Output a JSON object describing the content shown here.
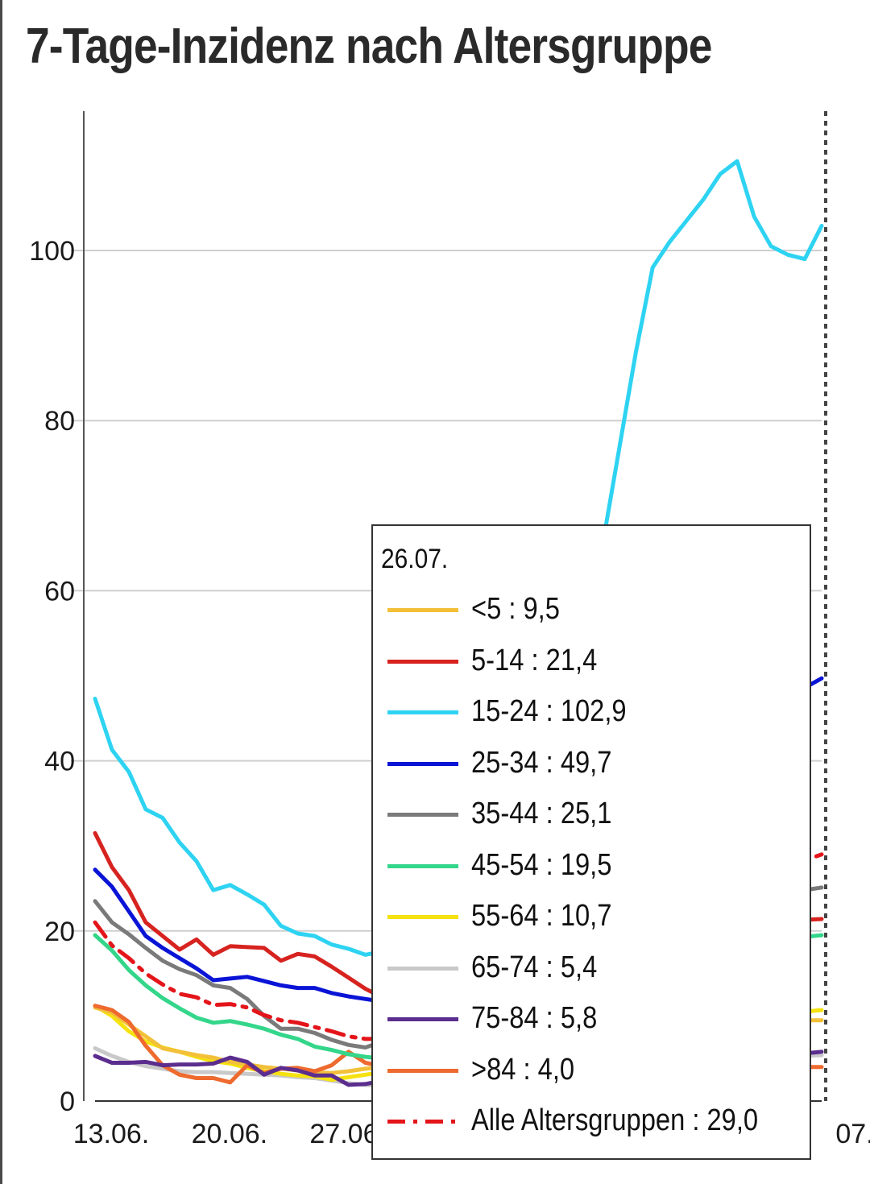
{
  "colors": {
    "u5": "#F2C039",
    "a5_14": "#D7231F",
    "a15_24": "#2ED3F2",
    "a25_34": "#0A14D6",
    "a35_44": "#7A7A7A",
    "a45_54": "#33D68A",
    "a55_64": "#F5E20F",
    "a65_74": "#C9C9C9",
    "a75_84": "#5B2D8E",
    "a84plus": "#EE6A2E",
    "all": "#E4151A"
  },
  "chart_data": {
    "type": "line",
    "title": "7-Tage-Inzidenz nach Altersgruppe",
    "xlabel": "",
    "ylabel": "",
    "ylim": [
      0,
      115
    ],
    "yticks": [
      0,
      20,
      40,
      60,
      80,
      100
    ],
    "xticks": [
      {
        "day": 0,
        "label": "13.06."
      },
      {
        "day": 7,
        "label": "20.06."
      },
      {
        "day": 14,
        "label": "27.06."
      },
      {
        "day": 44,
        "label": "07."
      }
    ],
    "x_range": [
      "13.06.",
      "26.07."
    ],
    "x_dates": [
      "13.06.",
      "14.06.",
      "15.06.",
      "16.06.",
      "17.06.",
      "18.06.",
      "19.06.",
      "20.06.",
      "21.06.",
      "22.06.",
      "23.06.",
      "24.06.",
      "25.06.",
      "26.06.",
      "27.06.",
      "28.06.",
      "29.06.",
      "30.06.",
      "01.07.",
      "02.07.",
      "03.07.",
      "04.07.",
      "05.07.",
      "06.07.",
      "07.07.",
      "08.07.",
      "09.07.",
      "10.07.",
      "11.07.",
      "12.07.",
      "13.07.",
      "14.07.",
      "15.07.",
      "16.07.",
      "17.07.",
      "18.07.",
      "19.07.",
      "20.07.",
      "21.07.",
      "22.07.",
      "23.07.",
      "24.07.",
      "25.07.",
      "26.07."
    ],
    "grid": true,
    "marker_date": "26.07.",
    "series": [
      {
        "key": "u5",
        "name": "<5",
        "color_key": "u5",
        "values": [
          11,
          10.4,
          9,
          7.6,
          6.2,
          5.8,
          5.4,
          5.1,
          4.6,
          4.3,
          4,
          3.8,
          3.6,
          3.4,
          3.3,
          3.5,
          3.8,
          4,
          4.3,
          4.6,
          4.9,
          5.1,
          5.4,
          5.6,
          5.9,
          6.1,
          6.4,
          6.7,
          7,
          7.3,
          7.6,
          7.9,
          8.2,
          8.5,
          8.7,
          8.9,
          9,
          9.1,
          9.2,
          9.3,
          9.4,
          9.4,
          9.5,
          9.5
        ]
      },
      {
        "key": "a5_14",
        "name": "5-14",
        "color_key": "a5_14",
        "values": [
          31.5,
          27.5,
          24.8,
          21,
          19.4,
          17.8,
          19,
          17.2,
          18.2,
          18.1,
          18,
          16.5,
          17.3,
          17,
          15.8,
          14.5,
          13.2,
          12.2,
          12.6,
          13,
          13.4,
          13.8,
          14.2,
          14.7,
          15.1,
          15.5,
          16,
          16.4,
          16.8,
          17.2,
          17.6,
          18,
          18.4,
          18.8,
          19.2,
          19.6,
          19.9,
          20.2,
          20.5,
          20.8,
          21,
          21.2,
          21.3,
          21.4
        ]
      },
      {
        "key": "a15_24",
        "name": "15-24",
        "color_key": "a15_24",
        "values": [
          47.3,
          41.3,
          38.7,
          34.3,
          33.3,
          30.4,
          28.2,
          24.8,
          25.4,
          24.3,
          23.1,
          20.6,
          19.7,
          19.4,
          18.4,
          17.9,
          17.2,
          17.6,
          19,
          21,
          23.3,
          25.8,
          28.6,
          31.5,
          34.8,
          38.5,
          42.5,
          47,
          52.5,
          58,
          65,
          76.5,
          88,
          98,
          101,
          103.5,
          106,
          109,
          110.5,
          104,
          100.5,
          99.5,
          99,
          102.9
        ]
      },
      {
        "key": "a25_34",
        "name": "25-34",
        "color_key": "a25_34",
        "values": [
          27.2,
          25.2,
          22.3,
          19.4,
          18,
          16.8,
          15.6,
          14.2,
          14.4,
          14.6,
          14.1,
          13.6,
          13.3,
          13.3,
          12.7,
          12.3,
          12,
          11.7,
          12.5,
          13.3,
          14.3,
          15.3,
          16.4,
          17.6,
          18.9,
          20.2,
          21.6,
          23.1,
          24.6,
          26.2,
          27.9,
          29.6,
          31.4,
          33.2,
          35.1,
          37,
          38.9,
          40.8,
          42.6,
          44.4,
          46,
          47.4,
          48.6,
          49.7
        ]
      },
      {
        "key": "a35_44",
        "name": "35-44",
        "color_key": "a35_44",
        "values": [
          23.5,
          21,
          19.6,
          18,
          16.5,
          15.5,
          14.8,
          13.6,
          13.3,
          12,
          10,
          8.5,
          8.5,
          8,
          7.2,
          6.6,
          6.3,
          7,
          7.6,
          8.2,
          8.9,
          9.6,
          10.3,
          11,
          11.8,
          12.6,
          13.4,
          14.2,
          15,
          15.8,
          16.6,
          17.4,
          18.2,
          19,
          19.7,
          20.4,
          21.1,
          21.8,
          22.5,
          23.2,
          23.8,
          24.4,
          24.8,
          25.1
        ]
      },
      {
        "key": "a45_54",
        "name": "45-54",
        "color_key": "a45_54",
        "values": [
          19.5,
          17.7,
          15.4,
          13.6,
          12.1,
          10.9,
          9.8,
          9.2,
          9.4,
          9,
          8.5,
          7.8,
          7.3,
          6.4,
          6,
          5.5,
          5.2,
          5,
          5.4,
          5.8,
          6.3,
          6.8,
          7.3,
          7.9,
          8.5,
          9.1,
          9.8,
          10.5,
          11.2,
          11.9,
          12.6,
          13.3,
          14,
          14.7,
          15.4,
          16,
          16.6,
          17.2,
          17.7,
          18.2,
          18.6,
          19,
          19.3,
          19.5
        ]
      },
      {
        "key": "a55_64",
        "name": "55-64",
        "color_key": "a55_64",
        "values": [
          11.2,
          10,
          8.2,
          7,
          6.3,
          5.8,
          5.2,
          4.7,
          4.4,
          3.9,
          3.5,
          3.2,
          3,
          2.9,
          2.5,
          2.8,
          3.1,
          3.4,
          3.6,
          3.8,
          4,
          4.2,
          4.5,
          4.8,
          5.1,
          5.4,
          5.7,
          6,
          6.3,
          6.6,
          6.9,
          7.2,
          7.5,
          7.8,
          8.1,
          8.4,
          8.7,
          9,
          9.3,
          9.6,
          9.9,
          10.2,
          10.5,
          10.7
        ]
      },
      {
        "key": "a65_74",
        "name": "65-74",
        "color_key": "a65_74",
        "values": [
          6.2,
          5.3,
          4.6,
          4.1,
          3.8,
          3.5,
          3.4,
          3.4,
          3.3,
          3.2,
          3.1,
          3,
          2.8,
          2.7,
          2.4,
          2.1,
          1.9,
          1.8,
          2,
          2.2,
          2.4,
          2.5,
          2.6,
          2.8,
          2.9,
          3,
          3.1,
          3.3,
          3.4,
          3.6,
          3.7,
          3.8,
          4,
          4.1,
          4.2,
          4.4,
          4.5,
          4.6,
          4.8,
          4.9,
          5,
          5.1,
          5.3,
          5.4
        ]
      },
      {
        "key": "a75_84",
        "name": "75-84",
        "color_key": "a75_84",
        "values": [
          5.3,
          4.5,
          4.5,
          4.6,
          4.2,
          4.3,
          4.3,
          4.4,
          5.1,
          4.6,
          3.1,
          3.9,
          3.6,
          3,
          3,
          1.9,
          2,
          2.4,
          2.5,
          2.6,
          2.7,
          2.8,
          2.9,
          3,
          3.1,
          3.3,
          3.4,
          3.5,
          3.7,
          3.8,
          3.9,
          4,
          4.2,
          4.3,
          4.4,
          4.6,
          4.7,
          4.8,
          5,
          5.1,
          5.3,
          5.4,
          5.6,
          5.8
        ]
      },
      {
        "key": "a84plus",
        "name": ">84",
        "color_key": "a84plus",
        "values": [
          11.2,
          10.7,
          9.3,
          6.5,
          4.2,
          3.1,
          2.7,
          2.7,
          2.2,
          4.2,
          3.3,
          3.8,
          3.9,
          3.5,
          4.2,
          5.8,
          4.5,
          4.1,
          3.9,
          3.8,
          3.7,
          3.6,
          3.6,
          3.5,
          3.5,
          3.5,
          3.6,
          3.6,
          3.6,
          3.7,
          3.7,
          3.7,
          3.8,
          3.8,
          3.8,
          3.8,
          3.9,
          3.9,
          3.9,
          3.9,
          4,
          4,
          4,
          4
        ]
      },
      {
        "key": "all",
        "name": "Alle Altersgruppen",
        "color_key": "all",
        "dashed": true,
        "values": [
          21,
          18.3,
          16.8,
          15,
          13.7,
          12.6,
          12.2,
          11.3,
          11.4,
          11,
          10.1,
          9.5,
          9.2,
          8.7,
          8.2,
          7.6,
          7.3,
          7.3,
          7.6,
          8,
          8.5,
          9,
          9.6,
          10.2,
          10.9,
          11.6,
          12.4,
          13.2,
          14.1,
          15,
          16,
          17,
          18,
          19.1,
          20.2,
          21.3,
          22.4,
          23.5,
          24.6,
          25.6,
          26.6,
          27.5,
          28.3,
          29
        ]
      }
    ]
  },
  "legend": {
    "date": "26.07.",
    "items": [
      {
        "key": "u5",
        "text": "<5 : 9,5"
      },
      {
        "key": "a5_14",
        "text": "5-14 : 21,4"
      },
      {
        "key": "a15_24",
        "text": "15-24 : 102,9"
      },
      {
        "key": "a25_34",
        "text": "25-34 : 49,7"
      },
      {
        "key": "a35_44",
        "text": "35-44 : 25,1"
      },
      {
        "key": "a45_54",
        "text": "45-54 : 19,5"
      },
      {
        "key": "a55_64",
        "text": "55-64 : 10,7"
      },
      {
        "key": "a65_74",
        "text": "65-74 : 5,4"
      },
      {
        "key": "a75_84",
        "text": "75-84 : 5,8"
      },
      {
        "key": "a84plus",
        "text": ">84 : 4,0"
      },
      {
        "key": "all",
        "text": "Alle Altersgruppen : 29,0"
      }
    ]
  }
}
